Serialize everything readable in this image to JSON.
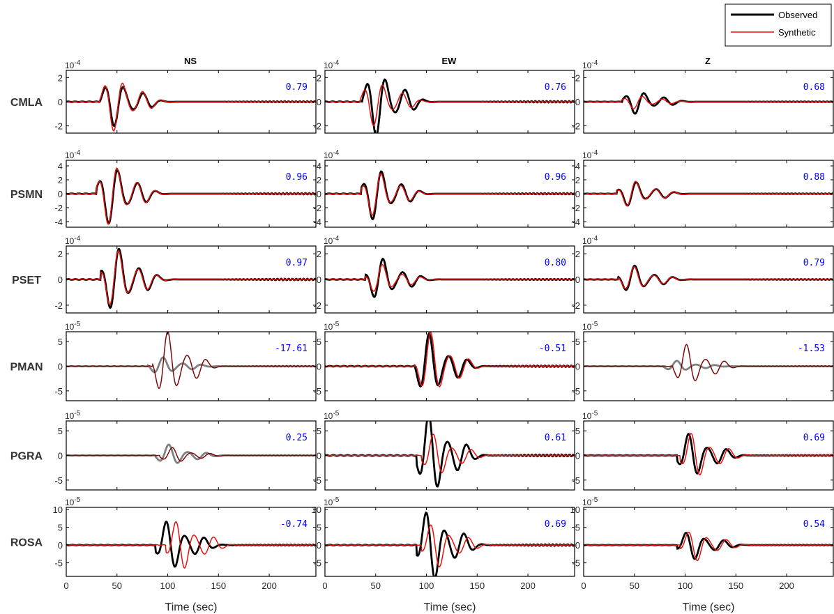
{
  "legend": {
    "placement": "top-right",
    "entries": [
      {
        "label": "Observed",
        "color": "#000000"
      },
      {
        "label": "Synthetic",
        "color": "#e8100c"
      }
    ]
  },
  "colors": {
    "observed": "#000000",
    "synthetic": "#e8100c",
    "observed_dimmed": "#7f7f7f",
    "synthetic_dimmed": "#7a0b0b",
    "correlation_text": "#0000ff"
  },
  "components": [
    "NS",
    "EW",
    "Z"
  ],
  "stations": [
    {
      "name": "CMLA",
      "exponent": "-4",
      "ylim": [
        -2.6,
        2.6
      ],
      "yticks": [
        -2,
        0,
        2
      ],
      "obs_scale": [
        2.0,
        2.8,
        1.0
      ],
      "syn_scale": [
        2.4,
        2.0,
        0.6
      ],
      "obs_t0": [
        33,
        37,
        38
      ],
      "syn_t0": [
        33,
        35,
        37
      ],
      "cc": [
        "0.79",
        "0.76",
        "0.68"
      ],
      "dimmed": [
        false,
        false,
        false
      ]
    },
    {
      "name": "PSMN",
      "exponent": "-4",
      "ylim": [
        -4.8,
        4.8
      ],
      "yticks": [
        -4,
        -2,
        0,
        2,
        4
      ],
      "obs_scale": [
        4.4,
        3.9,
        1.9
      ],
      "syn_scale": [
        4.6,
        3.4,
        2.0
      ],
      "obs_t0": [
        30,
        36,
        33
      ],
      "syn_t0": [
        30,
        36,
        33
      ],
      "cc": [
        "0.96",
        "0.96",
        "0.88"
      ],
      "dimmed": [
        false,
        false,
        false
      ]
    },
    {
      "name": "PSET",
      "exponent": "-4",
      "ylim": [
        -2.6,
        2.6
      ],
      "yticks": [
        -2,
        0,
        2
      ],
      "obs_scale": [
        2.6,
        1.7,
        1.1
      ],
      "syn_scale": [
        2.4,
        1.2,
        1.0
      ],
      "obs_t0": [
        34,
        40,
        34
      ],
      "syn_t0": [
        34,
        40,
        34
      ],
      "cc": [
        "0.97",
        "0.80",
        "0.79"
      ],
      "dimmed": [
        false,
        false,
        false
      ]
    },
    {
      "name": "PMAN",
      "exponent": "-5",
      "ylim": [
        -7,
        7
      ],
      "yticks": [
        -5,
        0,
        5
      ],
      "obs_scale": [
        1.8,
        6.6,
        1.1
      ],
      "syn_scale": [
        7.0,
        6.8,
        4.4
      ],
      "obs_t0": [
        80,
        88,
        78
      ],
      "syn_t0": [
        85,
        90,
        88
      ],
      "cc": [
        "-17.61",
        "-0.51",
        "-1.53"
      ],
      "dimmed": [
        true,
        false,
        true
      ]
    },
    {
      "name": "PGRA",
      "exponent": "-5",
      "ylim": [
        -7,
        7
      ],
      "yticks": [
        -5,
        0,
        5
      ],
      "obs_scale": [
        2.2,
        8.5,
        4.6
      ],
      "syn_scale": [
        1.6,
        4.5,
        4.8
      ],
      "obs_t0": [
        88,
        90,
        92
      ],
      "syn_t0": [
        92,
        95,
        95
      ],
      "cc": [
        "0.25",
        "0.61",
        "0.69"
      ],
      "dimmed": [
        true,
        false,
        false
      ]
    },
    {
      "name": "ROSA",
      "exponent": "-5",
      "ylim": [
        -8.8,
        10.6
      ],
      "yticks": [
        -5,
        0,
        5,
        10
      ],
      "obs_scale": [
        7.2,
        10.5,
        4.2
      ],
      "syn_scale": [
        7.4,
        6.7,
        4.6
      ],
      "obs_t0": [
        88,
        90,
        92
      ],
      "syn_t0": [
        98,
        95,
        95
      ],
      "cc": [
        "-0.74",
        "0.69",
        "0.54"
      ],
      "dimmed": [
        false,
        false,
        false
      ]
    }
  ],
  "xaxis": {
    "label": "Time (sec)",
    "xlim": [
      0,
      246
    ],
    "ticks": [
      0,
      50,
      100,
      150,
      200
    ]
  },
  "chart_data": {
    "type": "line",
    "xlabel": "Time (sec)",
    "xlim": [
      0,
      246
    ],
    "series": [
      {
        "name": "Observed",
        "color": "#000000"
      },
      {
        "name": "Synthetic",
        "color": "#e8100c"
      }
    ],
    "columns": [
      "NS",
      "EW",
      "Z"
    ],
    "rows": [
      "CMLA",
      "PSMN",
      "PSET",
      "PMAN",
      "PGRA",
      "ROSA"
    ],
    "annotations": [
      [
        "0.79",
        "0.76",
        "0.68"
      ],
      [
        "0.96",
        "0.96",
        "0.88"
      ],
      [
        "0.97",
        "0.80",
        "0.79"
      ],
      [
        "-17.61",
        "-0.51",
        "-1.53"
      ],
      [
        "0.25",
        "0.61",
        "0.69"
      ],
      [
        "-0.74",
        "0.69",
        "0.54"
      ]
    ],
    "grid": false,
    "legend": "top-right"
  }
}
